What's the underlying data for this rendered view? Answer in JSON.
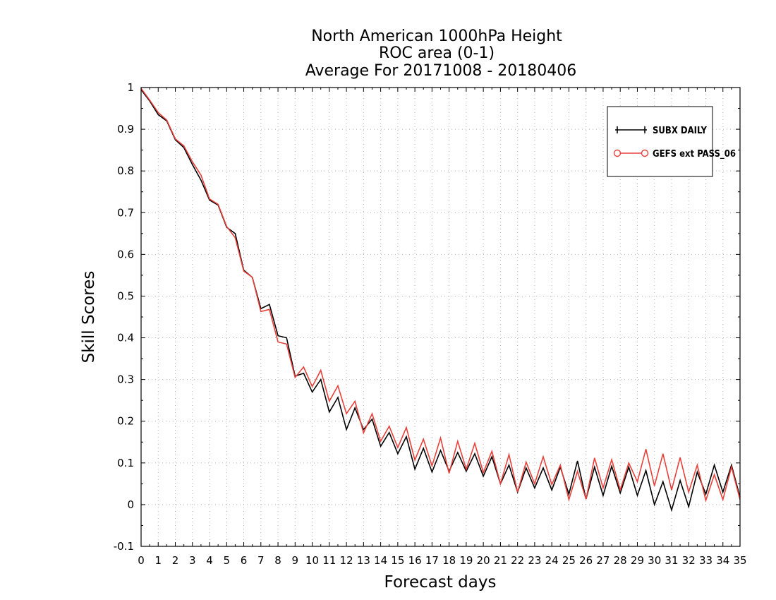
{
  "chart_data": {
    "type": "line",
    "title": [
      "North American 1000hPa Height",
      "ROC area (0-1)",
      "Average For 20171008 - 20180406"
    ],
    "xlabel": "Forecast days",
    "ylabel": "Skill Scores",
    "xlim": [
      0,
      35
    ],
    "ylim": [
      -0.1,
      1
    ],
    "xticks": [
      0,
      1,
      2,
      3,
      4,
      5,
      6,
      7,
      8,
      9,
      10,
      11,
      12,
      13,
      14,
      15,
      16,
      17,
      18,
      19,
      20,
      21,
      22,
      23,
      24,
      25,
      26,
      27,
      28,
      29,
      30,
      31,
      32,
      33,
      34,
      35
    ],
    "yticks": [
      -0.1,
      0,
      0.1,
      0.2,
      0.3,
      0.4,
      0.5,
      0.6,
      0.7,
      0.8,
      0.9,
      1
    ],
    "ytick_labels": [
      "-0.1",
      "0",
      "0.1",
      "0.2",
      "0.3",
      "0.4",
      "0.5",
      "0.6",
      "0.7",
      "0.8",
      "0.9",
      "1"
    ],
    "grid": true,
    "legend_position": "top-right",
    "series": [
      {
        "name": "SUBX DAILY",
        "color": "#000000",
        "marker": "plus",
        "x": [
          0,
          0.5,
          1,
          1.5,
          2,
          2.5,
          3,
          3.5,
          4,
          4.5,
          5,
          5.5,
          6,
          6.5,
          7,
          7.5,
          8,
          8.5,
          9,
          9.5,
          10,
          10.5,
          11,
          11.5,
          12,
          12.5,
          13,
          13.5,
          14,
          14.5,
          15,
          15.5,
          16,
          16.5,
          17,
          17.5,
          18,
          18.5,
          19,
          19.5,
          20,
          20.5,
          21,
          21.5,
          22,
          22.5,
          23,
          23.5,
          24,
          24.5,
          25,
          25.5,
          26,
          26.5,
          27,
          27.5,
          28,
          28.5,
          29,
          29.5,
          30,
          30.5,
          31,
          31.5,
          32,
          32.5,
          33,
          33.5,
          34,
          34.5,
          35
        ],
        "y": [
          0.995,
          0.968,
          0.935,
          0.92,
          0.875,
          0.856,
          0.815,
          0.778,
          0.73,
          0.718,
          0.665,
          0.65,
          0.562,
          0.545,
          0.47,
          0.48,
          0.405,
          0.4,
          0.308,
          0.315,
          0.27,
          0.3,
          0.222,
          0.257,
          0.18,
          0.232,
          0.18,
          0.205,
          0.14,
          0.173,
          0.122,
          0.163,
          0.085,
          0.135,
          0.078,
          0.13,
          0.08,
          0.125,
          0.08,
          0.122,
          0.068,
          0.115,
          0.05,
          0.095,
          0.03,
          0.088,
          0.04,
          0.088,
          0.035,
          0.09,
          0.025,
          0.105,
          0.013,
          0.09,
          0.022,
          0.092,
          0.028,
          0.09,
          0.022,
          0.082,
          0.0,
          0.055,
          -0.013,
          0.058,
          -0.005,
          0.078,
          0.025,
          0.095,
          0.03,
          0.095,
          0.018
        ]
      },
      {
        "name": "GEFS ext PASS_06",
        "color": "#e8403a",
        "marker": "circle",
        "x": [
          0,
          0.5,
          1,
          1.5,
          2,
          2.5,
          3,
          3.5,
          4,
          4.5,
          5,
          5.5,
          6,
          6.5,
          7,
          7.5,
          8,
          8.5,
          9,
          9.5,
          10,
          10.5,
          11,
          11.5,
          12,
          12.5,
          13,
          13.5,
          14,
          14.5,
          15,
          15.5,
          16,
          16.5,
          17,
          17.5,
          18,
          18.5,
          19,
          19.5,
          20,
          20.5,
          21,
          21.5,
          22,
          22.5,
          23,
          23.5,
          24,
          24.5,
          25,
          25.5,
          26,
          26.5,
          27,
          27.5,
          28,
          28.5,
          29,
          29.5,
          30,
          30.5,
          31,
          31.5,
          32,
          32.5,
          33,
          33.5,
          34,
          34.5,
          35
        ],
        "y": [
          0.998,
          0.97,
          0.94,
          0.922,
          0.877,
          0.86,
          0.822,
          0.79,
          0.733,
          0.72,
          0.667,
          0.64,
          0.56,
          0.545,
          0.463,
          0.468,
          0.39,
          0.385,
          0.305,
          0.33,
          0.283,
          0.322,
          0.248,
          0.285,
          0.218,
          0.248,
          0.172,
          0.218,
          0.152,
          0.188,
          0.137,
          0.185,
          0.107,
          0.157,
          0.093,
          0.16,
          0.075,
          0.152,
          0.085,
          0.147,
          0.077,
          0.128,
          0.05,
          0.12,
          0.03,
          0.102,
          0.05,
          0.115,
          0.048,
          0.095,
          0.012,
          0.08,
          0.013,
          0.112,
          0.04,
          0.108,
          0.035,
          0.1,
          0.055,
          0.133,
          0.045,
          0.122,
          0.035,
          0.113,
          0.03,
          0.095,
          0.01,
          0.072,
          0.012,
          0.09,
          0.012
        ]
      }
    ]
  }
}
